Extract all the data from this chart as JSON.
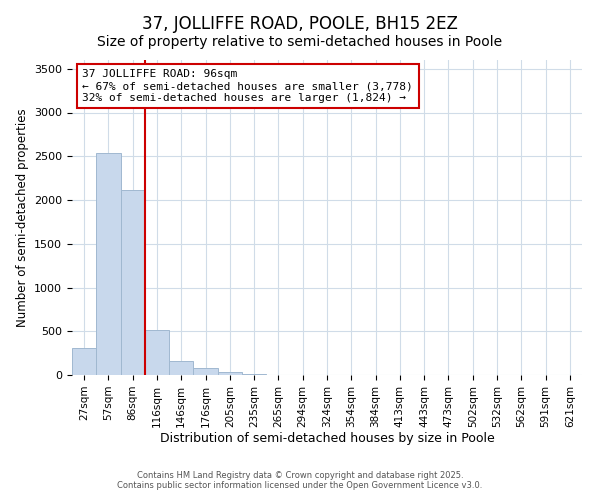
{
  "title": "37, JOLLIFFE ROAD, POOLE, BH15 2EZ",
  "subtitle": "Size of property relative to semi-detached houses in Poole",
  "xlabel": "Distribution of semi-detached houses by size in Poole",
  "ylabel": "Number of semi-detached properties",
  "categories": [
    "27sqm",
    "57sqm",
    "86sqm",
    "116sqm",
    "146sqm",
    "176sqm",
    "205sqm",
    "235sqm",
    "265sqm",
    "294sqm",
    "324sqm",
    "354sqm",
    "384sqm",
    "413sqm",
    "443sqm",
    "473sqm",
    "502sqm",
    "532sqm",
    "562sqm",
    "591sqm",
    "621sqm"
  ],
  "values": [
    305,
    2535,
    2115,
    510,
    162,
    80,
    30,
    15,
    4,
    0,
    0,
    0,
    0,
    0,
    0,
    0,
    0,
    0,
    0,
    0,
    0
  ],
  "bar_color": "#c8d8ec",
  "bar_edge_color": "#a0b8d0",
  "vline_index": 2.5,
  "annotation_line1": "37 JOLLIFFE ROAD: 96sqm",
  "annotation_line2": "← 67% of semi-detached houses are smaller (3,778)",
  "annotation_line3": "32% of semi-detached houses are larger (1,824) →",
  "annotation_box_color": "#ffffff",
  "annotation_box_edge_color": "#cc0000",
  "vline_color": "#cc0000",
  "background_color": "#ffffff",
  "plot_bg_color": "#ffffff",
  "grid_color": "#d0dce8",
  "footer1": "Contains HM Land Registry data © Crown copyright and database right 2025.",
  "footer2": "Contains public sector information licensed under the Open Government Licence v3.0.",
  "title_fontsize": 12,
  "subtitle_fontsize": 10,
  "ylim": [
    0,
    3600
  ],
  "yticks": [
    0,
    500,
    1000,
    1500,
    2000,
    2500,
    3000,
    3500
  ]
}
